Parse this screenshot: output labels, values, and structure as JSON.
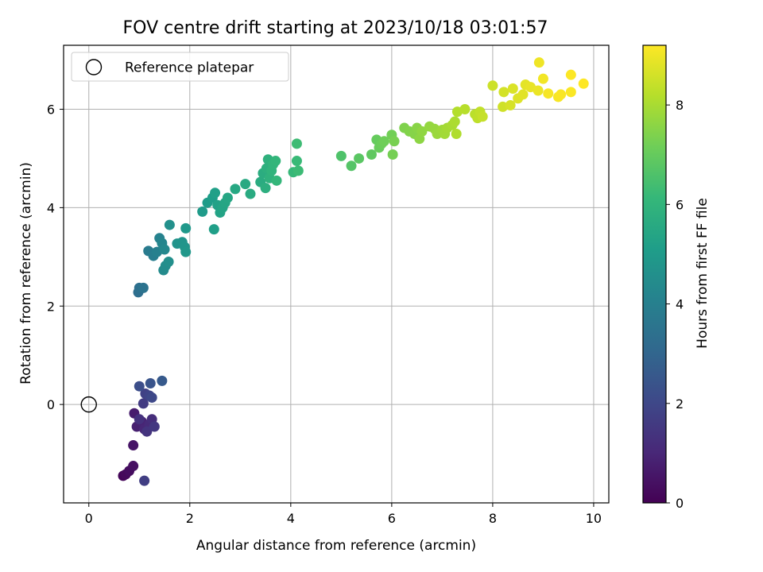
{
  "chart_data": {
    "type": "scatter",
    "title": "FOV centre drift starting at 2023/10/18 03:01:57",
    "xlabel": "Angular distance from reference (arcmin)",
    "ylabel": "Rotation from reference (arcmin)",
    "xlim": [
      -0.5,
      10.3
    ],
    "ylim": [
      -2.0,
      7.3
    ],
    "xticks": [
      0,
      2,
      4,
      6,
      8,
      10
    ],
    "yticks": [
      0,
      2,
      4,
      6
    ],
    "grid": true,
    "legend": {
      "placement": "top-left",
      "entries": [
        "Reference platepar"
      ]
    },
    "reference_point": {
      "x": 0,
      "y": 0,
      "label": "Reference platepar"
    },
    "colorbar": {
      "label": "Hours from first FF file",
      "range": [
        0,
        9.2
      ],
      "ticks": [
        0,
        2,
        4,
        6,
        8
      ],
      "colormap": "viridis"
    },
    "points": [
      [
        0.68,
        -1.45,
        0.1
      ],
      [
        0.73,
        -1.42,
        0.2
      ],
      [
        0.8,
        -1.35,
        0.3
      ],
      [
        0.88,
        -1.25,
        0.4
      ],
      [
        0.88,
        -0.83,
        0.5
      ],
      [
        0.9,
        -0.18,
        0.7
      ],
      [
        0.95,
        -0.45,
        0.8
      ],
      [
        1.05,
        -0.35,
        0.9
      ],
      [
        1.1,
        -0.5,
        1.0
      ],
      [
        1.2,
        -0.4,
        1.1
      ],
      [
        1.25,
        -0.3,
        1.2
      ],
      [
        1.0,
        -0.3,
        1.3
      ],
      [
        1.15,
        -0.55,
        1.4
      ],
      [
        1.3,
        -0.45,
        1.5
      ],
      [
        1.08,
        0.02,
        1.6
      ],
      [
        1.1,
        -1.55,
        1.7
      ],
      [
        1.12,
        0.22,
        1.8
      ],
      [
        1.2,
        0.18,
        1.9
      ],
      [
        1.25,
        0.14,
        2.0
      ],
      [
        1.0,
        0.37,
        2.2
      ],
      [
        1.22,
        0.43,
        2.4
      ],
      [
        1.45,
        0.48,
        2.6
      ],
      [
        0.98,
        2.28,
        3.3
      ],
      [
        1.0,
        2.37,
        3.4
      ],
      [
        1.08,
        2.37,
        3.5
      ],
      [
        1.18,
        3.12,
        3.8
      ],
      [
        1.28,
        3.02,
        3.9
      ],
      [
        1.35,
        3.1,
        4.0
      ],
      [
        1.4,
        3.38,
        4.1
      ],
      [
        1.45,
        3.28,
        4.2
      ],
      [
        1.5,
        3.15,
        4.3
      ],
      [
        1.48,
        2.73,
        4.4
      ],
      [
        1.52,
        2.82,
        4.5
      ],
      [
        1.58,
        2.9,
        4.55
      ],
      [
        1.6,
        3.65,
        4.6
      ],
      [
        1.75,
        3.27,
        4.7
      ],
      [
        1.85,
        3.3,
        4.75
      ],
      [
        1.9,
        3.2,
        4.8
      ],
      [
        1.92,
        3.1,
        4.85
      ],
      [
        1.92,
        3.58,
        4.9
      ],
      [
        2.25,
        3.92,
        5.0
      ],
      [
        2.35,
        4.1,
        5.05
      ],
      [
        2.45,
        4.2,
        5.1
      ],
      [
        2.48,
        3.56,
        5.15
      ],
      [
        2.5,
        4.3,
        5.2
      ],
      [
        2.55,
        4.05,
        5.25
      ],
      [
        2.6,
        3.9,
        5.3
      ],
      [
        2.65,
        4.0,
        5.35
      ],
      [
        2.7,
        4.1,
        5.4
      ],
      [
        2.75,
        4.2,
        5.45
      ],
      [
        2.9,
        4.38,
        5.5
      ],
      [
        3.1,
        4.48,
        5.55
      ],
      [
        3.2,
        4.28,
        5.6
      ],
      [
        3.4,
        4.52,
        5.65
      ],
      [
        3.45,
        4.7,
        5.7
      ],
      [
        3.5,
        4.4,
        5.75
      ],
      [
        3.52,
        4.8,
        5.8
      ],
      [
        3.55,
        4.98,
        5.85
      ],
      [
        3.58,
        4.6,
        5.9
      ],
      [
        3.62,
        4.75,
        5.95
      ],
      [
        3.65,
        4.88,
        6.0
      ],
      [
        3.7,
        4.95,
        6.05
      ],
      [
        3.72,
        4.55,
        6.1
      ],
      [
        4.05,
        4.72,
        6.15
      ],
      [
        4.12,
        4.95,
        6.2
      ],
      [
        4.15,
        4.75,
        6.25
      ],
      [
        4.12,
        5.3,
        6.3
      ],
      [
        5.0,
        5.05,
        6.6
      ],
      [
        5.2,
        4.85,
        6.7
      ],
      [
        5.35,
        5.0,
        6.8
      ],
      [
        5.6,
        5.08,
        6.9
      ],
      [
        5.7,
        5.38,
        7.0
      ],
      [
        5.75,
        5.22,
        7.05
      ],
      [
        5.8,
        5.3,
        7.1
      ],
      [
        5.85,
        5.35,
        7.15
      ],
      [
        6.0,
        5.48,
        7.2
      ],
      [
        6.02,
        5.08,
        7.25
      ],
      [
        6.05,
        5.35,
        7.3
      ],
      [
        6.25,
        5.62,
        7.4
      ],
      [
        6.35,
        5.55,
        7.45
      ],
      [
        6.45,
        5.5,
        7.5
      ],
      [
        6.5,
        5.62,
        7.55
      ],
      [
        6.55,
        5.4,
        7.6
      ],
      [
        6.6,
        5.55,
        7.65
      ],
      [
        6.75,
        5.65,
        7.7
      ],
      [
        6.85,
        5.6,
        7.75
      ],
      [
        6.9,
        5.5,
        7.8
      ],
      [
        7.0,
        5.58,
        7.85
      ],
      [
        7.05,
        5.5,
        7.9
      ],
      [
        7.1,
        5.62,
        7.95
      ],
      [
        7.2,
        5.68,
        8.0
      ],
      [
        7.25,
        5.75,
        8.05
      ],
      [
        7.28,
        5.5,
        8.1
      ],
      [
        7.3,
        5.95,
        8.15
      ],
      [
        7.45,
        6.0,
        8.2
      ],
      [
        7.65,
        5.9,
        8.25
      ],
      [
        7.7,
        5.82,
        8.3
      ],
      [
        7.75,
        5.95,
        8.35
      ],
      [
        7.8,
        5.85,
        8.4
      ],
      [
        8.0,
        6.48,
        8.5
      ],
      [
        8.2,
        6.05,
        8.55
      ],
      [
        8.22,
        6.35,
        8.6
      ],
      [
        8.35,
        6.08,
        8.65
      ],
      [
        8.4,
        6.42,
        8.7
      ],
      [
        8.5,
        6.22,
        8.75
      ],
      [
        8.6,
        6.3,
        8.8
      ],
      [
        8.65,
        6.5,
        8.85
      ],
      [
        8.75,
        6.45,
        8.9
      ],
      [
        8.9,
        6.38,
        8.95
      ],
      [
        8.92,
        6.95,
        9.0
      ],
      [
        9.0,
        6.62,
        9.05
      ],
      [
        9.1,
        6.32,
        9.1
      ],
      [
        9.3,
        6.25,
        9.12
      ],
      [
        9.35,
        6.3,
        9.14
      ],
      [
        9.55,
        6.35,
        9.16
      ],
      [
        9.55,
        6.7,
        9.18
      ],
      [
        9.8,
        6.52,
        9.2
      ]
    ]
  }
}
